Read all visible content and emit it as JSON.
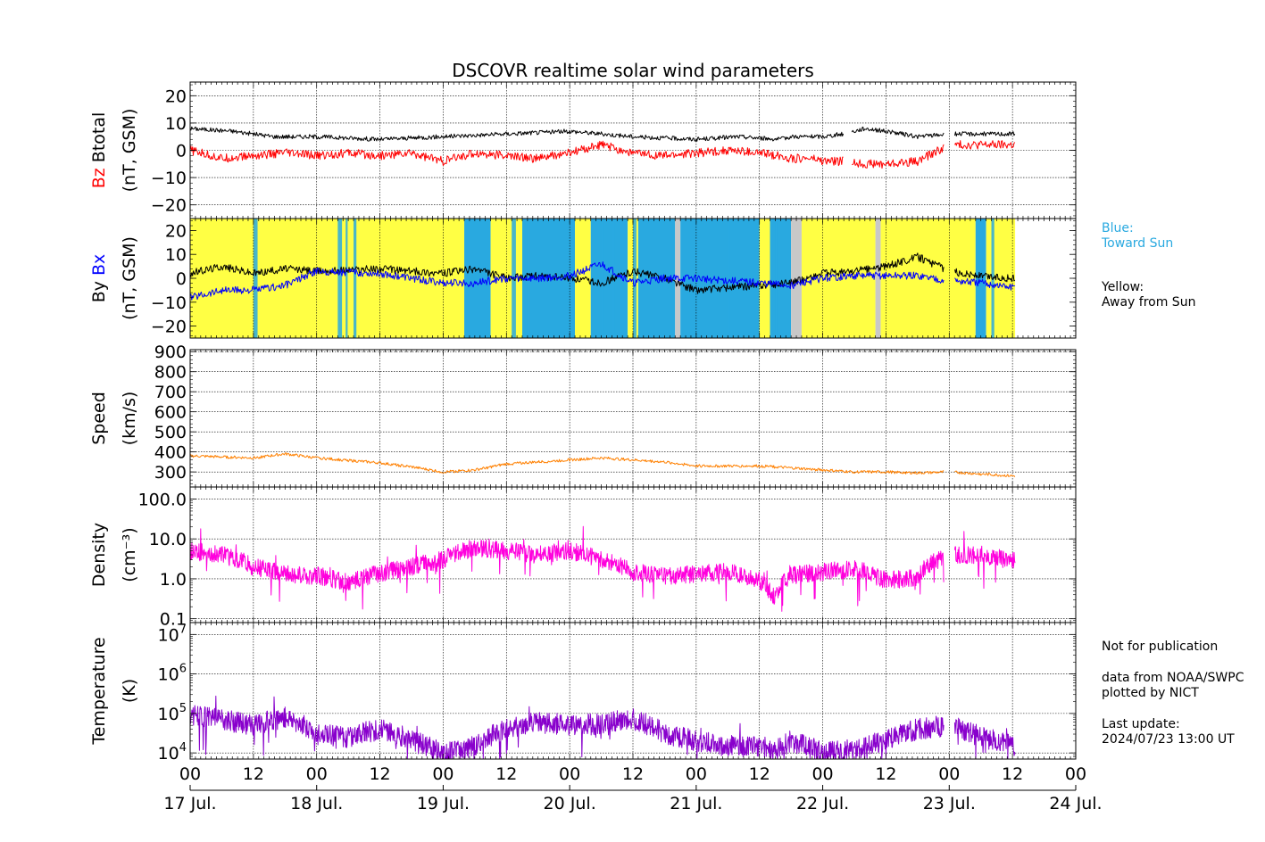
{
  "chart_data": {
    "type": "line",
    "title": "DSCOVR realtime solar wind parameters",
    "x_axis": {
      "hour_labels": [
        "00",
        "12",
        "00",
        "12",
        "00",
        "12",
        "00",
        "12",
        "00",
        "12",
        "00",
        "12",
        "00",
        "12",
        "00"
      ],
      "day_labels": [
        "17 Jul.",
        "18 Jul.",
        "19 Jul.",
        "20 Jul.",
        "21 Jul.",
        "22 Jul.",
        "23 Jul.",
        "24 Jul."
      ],
      "range_hours": [
        0,
        168
      ],
      "data_end_hours": 156.5
    },
    "panels": [
      {
        "key": "b",
        "ylabel_parts": [
          {
            "text": "Bz",
            "color": "#ff0000"
          },
          {
            "text": "Btotal",
            "color": "#000000"
          }
        ],
        "yunit": "(nT, GSM)",
        "scale": "linear",
        "ylim": [
          -25,
          25
        ],
        "ticks": [
          20,
          10,
          0,
          -10,
          -20
        ],
        "tick_labels": [
          "20",
          "10",
          "0",
          "−10",
          "−20"
        ],
        "grid": true,
        "series": [
          {
            "name": "Btotal",
            "color": "#000000",
            "x": [
              0,
              8,
              16,
              24,
              36,
              48,
              60,
              72,
              78,
              84,
              96,
              104,
              112,
              114,
              118,
              120,
              124,
              128,
              132,
              138,
              144,
              150,
              156
            ],
            "y": [
              8,
              7,
              5,
              5,
              4,
              5,
              6,
              7,
              6,
              5,
              4,
              5,
              4,
              5,
              5,
              5,
              6,
              8,
              7,
              5,
              6,
              6,
              6
            ]
          },
          {
            "name": "Bz",
            "color": "#ff0000",
            "x": [
              0,
              6,
              12,
              18,
              24,
              30,
              36,
              42,
              48,
              54,
              60,
              66,
              72,
              78,
              84,
              90,
              96,
              102,
              108,
              112,
              114,
              118,
              120,
              124,
              128,
              132,
              138,
              144,
              150,
              156
            ],
            "y": [
              0,
              -3,
              -2,
              -1,
              -2,
              -1,
              -2,
              -1,
              -4,
              -1,
              -2,
              -3,
              -1,
              2,
              -1,
              -2,
              -1,
              0,
              -1,
              -2,
              -3,
              -3,
              -4,
              -4,
              -5,
              -5,
              -4,
              2,
              2,
              2
            ]
          }
        ]
      },
      {
        "key": "bxy",
        "ylabel_parts": [
          {
            "text": "By",
            "color": "#000000"
          },
          {
            "text": "Bx",
            "color": "#0000ff"
          }
        ],
        "yunit": "(nT, GSM)",
        "scale": "linear",
        "ylim": [
          -25,
          25
        ],
        "ticks": [
          20,
          10,
          0,
          -10,
          -20
        ],
        "tick_labels": [
          "20",
          "10",
          "0",
          "−10",
          "−20"
        ],
        "grid": false,
        "background_bands": [
          {
            "from": 0,
            "to": 52,
            "sector": "away"
          },
          {
            "from": 52,
            "to": 57,
            "sector": "toward"
          },
          {
            "from": 57,
            "to": 63,
            "sector": "away"
          },
          {
            "from": 63,
            "to": 73,
            "sector": "toward"
          },
          {
            "from": 73,
            "to": 76,
            "sector": "away"
          },
          {
            "from": 76,
            "to": 83,
            "sector": "toward"
          },
          {
            "from": 83,
            "to": 85,
            "sector": "away"
          },
          {
            "from": 85,
            "to": 92,
            "sector": "toward"
          },
          {
            "from": 92,
            "to": 93,
            "sector": "missing"
          },
          {
            "from": 93,
            "to": 108,
            "sector": "toward"
          },
          {
            "from": 108,
            "to": 110,
            "sector": "away"
          },
          {
            "from": 110,
            "to": 114,
            "sector": "toward"
          },
          {
            "from": 114,
            "to": 116,
            "sector": "missing"
          },
          {
            "from": 116,
            "to": 130,
            "sector": "away"
          },
          {
            "from": 130,
            "to": 131,
            "sector": "missing"
          },
          {
            "from": 131,
            "to": 149,
            "sector": "away"
          },
          {
            "from": 149,
            "to": 151,
            "sector": "toward"
          },
          {
            "from": 151,
            "to": 156.5,
            "sector": "away"
          }
        ],
        "sector_colors": {
          "away": "#ffff44",
          "toward": "#29a9e0",
          "missing": "#c8c8c8"
        },
        "series": [
          {
            "name": "By",
            "color": "#000000",
            "x": [
              0,
              6,
              12,
              18,
              24,
              36,
              48,
              54,
              60,
              66,
              72,
              78,
              84,
              90,
              96,
              102,
              108,
              114,
              120,
              126,
              132,
              138,
              144,
              150,
              156
            ],
            "y": [
              2,
              5,
              2,
              4,
              3,
              4,
              2,
              4,
              0,
              1,
              0,
              -2,
              3,
              0,
              -5,
              -4,
              -3,
              -2,
              2,
              3,
              5,
              9,
              3,
              1,
              0
            ]
          },
          {
            "name": "Bx",
            "color": "#0000ff",
            "x": [
              0,
              6,
              12,
              18,
              24,
              36,
              48,
              54,
              60,
              66,
              72,
              78,
              84,
              90,
              96,
              102,
              108,
              114,
              120,
              126,
              132,
              138,
              144,
              150,
              156
            ],
            "y": [
              -8,
              -5,
              -5,
              -3,
              3,
              2,
              -2,
              -2,
              0,
              0,
              1,
              6,
              -2,
              0,
              0,
              -1,
              -2,
              -3,
              0,
              1,
              1,
              1,
              -1,
              -2,
              -4
            ]
          }
        ]
      },
      {
        "key": "speed",
        "ylabel_parts": [
          {
            "text": "Speed",
            "color": "#000000"
          }
        ],
        "yunit": "(km/s)",
        "scale": "linear",
        "ylim": [
          225,
          910
        ],
        "ticks": [
          900,
          800,
          700,
          600,
          500,
          400,
          300
        ],
        "tick_labels": [
          "900",
          "800",
          "700",
          "600",
          "500",
          "400",
          "300"
        ],
        "grid": true,
        "series": [
          {
            "name": "Speed",
            "color": "#ff8000",
            "x": [
              0,
              12,
              18,
              24,
              36,
              42,
              48,
              54,
              60,
              66,
              72,
              78,
              84,
              90,
              96,
              108,
              114,
              120,
              126,
              132,
              138,
              144,
              150,
              156
            ],
            "y": [
              380,
              370,
              390,
              370,
              345,
              325,
              300,
              310,
              340,
              350,
              360,
              370,
              360,
              350,
              330,
              330,
              320,
              310,
              300,
              300,
              295,
              300,
              290,
              280
            ]
          }
        ]
      },
      {
        "key": "density",
        "ylabel_parts": [
          {
            "text": "Density",
            "color": "#000000"
          }
        ],
        "yunit": "(cm⁻³)",
        "scale": "log",
        "ylim": [
          0.08,
          200
        ],
        "ticks": [
          100,
          10,
          1,
          0.1
        ],
        "tick_labels": [
          "100.0",
          "10.0",
          "1.0",
          "0.1"
        ],
        "grid": true,
        "series": [
          {
            "name": "Density",
            "color": "#ff00dd",
            "x": [
              0,
              6,
              12,
              18,
              24,
              30,
              36,
              42,
              48,
              54,
              60,
              66,
              72,
              78,
              84,
              90,
              96,
              102,
              108,
              111,
              114,
              120,
              126,
              132,
              138,
              144,
              150,
              156
            ],
            "y": [
              5,
              4,
              2,
              1.3,
              1.2,
              0.8,
              1.4,
              2,
              3,
              6,
              5,
              4,
              5,
              3,
              1.5,
              1.2,
              1.3,
              1.5,
              0.9,
              0.3,
              1.2,
              1.5,
              1.8,
              0.9,
              1.1,
              4,
              4,
              3
            ]
          }
        ]
      },
      {
        "key": "temperature",
        "ylabel_parts": [
          {
            "text": "Temperature",
            "color": "#000000"
          }
        ],
        "yunit": "(K)",
        "scale": "log",
        "ylim": [
          7000,
          20000000
        ],
        "ticks": [
          10000000,
          1000000,
          100000,
          10000
        ],
        "tick_labels": [
          [
            "10",
            "7"
          ],
          [
            "10",
            "6"
          ],
          [
            "10",
            "5"
          ],
          [
            "10",
            "4"
          ]
        ],
        "grid": true,
        "series": [
          {
            "name": "Temperature",
            "color": "#8800cc",
            "x": [
              0,
              6,
              12,
              18,
              24,
              30,
              36,
              42,
              48,
              54,
              60,
              66,
              72,
              78,
              84,
              90,
              96,
              102,
              108,
              111,
              114,
              120,
              126,
              132,
              138,
              144,
              150,
              156
            ],
            "y": [
              90000,
              70000,
              50000,
              80000,
              30000,
              25000,
              40000,
              20000,
              9000,
              15000,
              40000,
              60000,
              50000,
              55000,
              70000,
              30000,
              20000,
              15000,
              15000,
              12000,
              20000,
              10000,
              12000,
              20000,
              40000,
              50000,
              25000,
              15000
            ]
          }
        ]
      }
    ]
  },
  "legend_notes": {
    "blue_title": "Blue:",
    "blue_text": "Toward Sun",
    "yellow_title": "Yellow:",
    "yellow_text": "Away from Sun",
    "blue_color": "#29a9e0"
  },
  "footer_notes": {
    "not_for_publication": "Not for publication",
    "data_source": "data from NOAA/SWPC",
    "plotted_by": "plotted by NICT",
    "last_update_label": "Last update:",
    "last_update_value": "2024/07/23 13:00 UT"
  }
}
